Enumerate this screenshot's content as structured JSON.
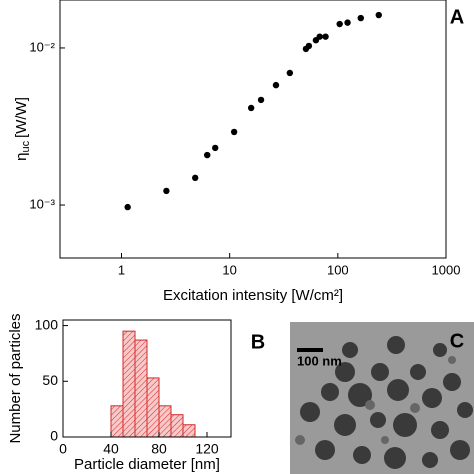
{
  "chart_data": [
    {
      "type": "scatter",
      "panel_label": "A",
      "x_label": "Excitation intensity [W/cm²]",
      "y_label": {
        "symbol": "η",
        "subscript": "uc",
        "unit": "[W/W]"
      },
      "xscale": "log",
      "yscale": "log",
      "xlim": [
        0.27,
        1000
      ],
      "ylim": [
        0.00046,
        0.0202
      ],
      "xticks": [
        1,
        10,
        100,
        1000
      ],
      "yticks": [
        {
          "value": 0.01,
          "label": "10⁻²"
        },
        {
          "value": 0.001,
          "label": "10⁻³"
        }
      ],
      "color": "#000000",
      "x": [
        1.14,
        2.6,
        4.8,
        6.2,
        7.35,
        11,
        15.8,
        19.5,
        26.8,
        36,
        50.7,
        54,
        62.7,
        68,
        77,
        104,
        123,
        163,
        239
      ],
      "values": [
        0.00097,
        0.00123,
        0.00149,
        0.00208,
        0.00231,
        0.00292,
        0.00415,
        0.00467,
        0.0058,
        0.00693,
        0.00986,
        0.0103,
        0.0112,
        0.0118,
        0.0118,
        0.0142,
        0.0145,
        0.0155,
        0.0162
      ]
    },
    {
      "type": "histogram",
      "panel_label": "B",
      "x_label": "Particle diameter [nm]",
      "y_label": "Number of particles",
      "xlim": [
        0,
        140
      ],
      "ylim": [
        0,
        105
      ],
      "xticks": [
        0,
        40,
        80,
        120
      ],
      "yticks": [
        0,
        50,
        100
      ],
      "color": "#d62728",
      "bins": [
        40,
        50,
        60,
        70,
        80,
        90,
        100,
        110
      ],
      "values": [
        28,
        95,
        87,
        53,
        28,
        20,
        11
      ]
    }
  ],
  "image": {
    "panel_label": "C",
    "scale_bar": "100 nm"
  }
}
